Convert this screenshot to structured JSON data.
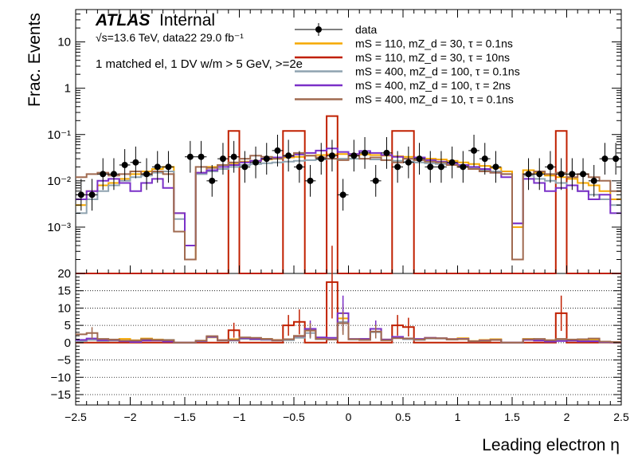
{
  "header": {
    "atlas": "ATLAS",
    "internal": "Internal",
    "energy_line": "√s=13.6 TeV, data22 29.0 fb⁻¹",
    "selection": "1 matched el, 1 DV w/m > 5 GeV, >=2e"
  },
  "axes": {
    "ylabel": "Frac. Events",
    "xlabel": "Leading electron η",
    "x_ticks": [
      "−2.5",
      "−2",
      "−1.5",
      "−1",
      "−0.5",
      "0",
      "0.5",
      "1",
      "1.5",
      "2",
      "2.5"
    ],
    "y_ticks_top": [
      "10",
      "1",
      "10⁻¹",
      "10⁻²",
      "10⁻³"
    ],
    "y_ticks_ratio": [
      "20",
      "15",
      "10",
      "5",
      "0",
      "−5",
      "−10",
      "−15"
    ]
  },
  "legend": [
    {
      "label": "data",
      "color": "#000000",
      "style": "marker"
    },
    {
      "label": "mS = 110, mZ_d = 30, τ = 0.1ns",
      "color": "#f5a800",
      "style": "line"
    },
    {
      "label": "mS = 110, mZ_d = 30, τ = 10ns",
      "color": "#c02000",
      "style": "line"
    },
    {
      "label": "mS = 400, mZ_d = 100, τ = 0.1ns",
      "color": "#8fa3b0",
      "style": "line"
    },
    {
      "label": "mS = 400, mZ_d = 100, τ = 2ns",
      "color": "#7a30c8",
      "style": "line"
    },
    {
      "label": "mS = 400, mZ_d = 10, τ = 0.1ns",
      "color": "#a06a50",
      "style": "line"
    }
  ],
  "chart_data": {
    "type": "line",
    "x": [
      -2.45,
      -2.35,
      -2.25,
      -2.15,
      -2.05,
      -1.95,
      -1.85,
      -1.75,
      -1.65,
      -1.55,
      -1.45,
      -1.35,
      -1.25,
      -1.15,
      -1.05,
      -0.95,
      -0.85,
      -0.75,
      -0.65,
      -0.55,
      -0.45,
      -0.35,
      -0.25,
      -0.15,
      -0.05,
      0.05,
      0.15,
      0.25,
      0.35,
      0.45,
      0.55,
      0.65,
      0.75,
      0.85,
      0.95,
      1.05,
      1.15,
      1.25,
      1.35,
      1.45,
      1.55,
      1.65,
      1.75,
      1.85,
      1.95,
      2.05,
      2.15,
      2.25,
      2.35,
      2.45
    ],
    "xlim": [
      -2.5,
      2.5
    ],
    "ylim_top": [
      0.0001,
      50
    ],
    "ylim_ratio": [
      -18,
      20
    ],
    "yscale_top": "log",
    "grid_ratio": true,
    "legend_position": "top-right",
    "series": [
      {
        "name": "data",
        "values": [
          0.005,
          0.005,
          0.014,
          0.014,
          0.022,
          0.025,
          0.014,
          0.02,
          0.02,
          0.0,
          0.033,
          0.033,
          0.01,
          0.03,
          0.033,
          0.02,
          0.025,
          0.03,
          0.045,
          0.035,
          0.02,
          0.01,
          0.03,
          0.035,
          0.005,
          0.035,
          0.04,
          0.01,
          0.04,
          0.02,
          0.025,
          0.03,
          0.02,
          0.02,
          0.025,
          0.02,
          0.045,
          0.03,
          0.02,
          0.0,
          0.0,
          0.014,
          0.014,
          0.02,
          0.014,
          0.014,
          0.014,
          0.01,
          0.03,
          0.03
        ]
      },
      {
        "name": "mS = 110, mZ_d = 30, τ = 0.1ns",
        "values": [
          0.003,
          0.006,
          0.008,
          0.009,
          0.011,
          0.014,
          0.016,
          0.018,
          0.02,
          0.002,
          0.0002,
          0.015,
          0.02,
          0.022,
          0.024,
          0.026,
          0.027,
          0.029,
          0.03,
          0.032,
          0.033,
          0.035,
          0.036,
          0.037,
          0.038,
          0.038,
          0.037,
          0.036,
          0.035,
          0.034,
          0.033,
          0.031,
          0.03,
          0.029,
          0.027,
          0.025,
          0.023,
          0.021,
          0.019,
          0.016,
          0.001,
          0.017,
          0.015,
          0.013,
          0.012,
          0.011,
          0.009,
          0.008,
          0.006,
          0.004
        ]
      },
      {
        "name": "mS = 110, mZ_d = 30, τ = 10ns",
        "values": [
          0.0001,
          0.0001,
          0.0001,
          0.0001,
          0.0001,
          0.0001,
          0.0001,
          0.0001,
          0.0001,
          0.0001,
          0.0001,
          0.0001,
          0.0001,
          0.0001,
          0.12,
          0.0001,
          0.0001,
          0.0001,
          0.0001,
          0.12,
          0.12,
          0.0001,
          0.0001,
          0.25,
          0.0001,
          0.0001,
          0.0001,
          0.0001,
          0.0001,
          0.12,
          0.12,
          0.0001,
          0.0001,
          0.0001,
          0.0001,
          0.0001,
          0.0001,
          0.0001,
          0.0001,
          0.0001,
          0.0001,
          0.0001,
          0.0001,
          0.0001,
          0.12,
          0.0001,
          0.0001,
          0.0001,
          0.0001,
          0.0001
        ]
      },
      {
        "name": "mS = 400, mZ_d = 100, τ = 0.1ns",
        "values": [
          0.002,
          0.004,
          0.006,
          0.008,
          0.01,
          0.012,
          0.013,
          0.015,
          0.016,
          0.0015,
          0.0004,
          0.014,
          0.016,
          0.018,
          0.02,
          0.022,
          0.023,
          0.024,
          0.025,
          0.026,
          0.027,
          0.028,
          0.029,
          0.03,
          0.03,
          0.03,
          0.03,
          0.029,
          0.028,
          0.027,
          0.026,
          0.025,
          0.024,
          0.023,
          0.022,
          0.021,
          0.019,
          0.017,
          0.016,
          0.014,
          0.0012,
          0.013,
          0.011,
          0.01,
          0.009,
          0.008,
          0.006,
          0.005,
          0.004,
          0.003
        ]
      },
      {
        "name": "mS = 400, mZ_d = 100, τ = 2ns",
        "values": [
          0.004,
          0.006,
          0.01,
          0.011,
          0.009,
          0.006,
          0.009,
          0.011,
          0.007,
          0.002,
          0.0004,
          0.015,
          0.017,
          0.02,
          0.022,
          0.025,
          0.027,
          0.03,
          0.032,
          0.034,
          0.037,
          0.04,
          0.045,
          0.05,
          0.042,
          0.038,
          0.044,
          0.04,
          0.036,
          0.033,
          0.03,
          0.032,
          0.028,
          0.026,
          0.024,
          0.022,
          0.02,
          0.018,
          0.015,
          0.012,
          0.0012,
          0.011,
          0.009,
          0.006,
          0.007,
          0.008,
          0.006,
          0.004,
          0.005,
          0.002
        ]
      },
      {
        "name": "mS = 400, mZ_d = 10, τ = 0.1ns",
        "values": [
          0.012,
          0.014,
          0.015,
          0.013,
          0.014,
          0.016,
          0.014,
          0.016,
          0.014,
          0.0008,
          0.0002,
          0.02,
          0.019,
          0.022,
          0.025,
          0.03,
          0.035,
          0.033,
          0.03,
          0.035,
          0.04,
          0.035,
          0.032,
          0.03,
          0.028,
          0.035,
          0.03,
          0.032,
          0.028,
          0.025,
          0.03,
          0.028,
          0.026,
          0.025,
          0.022,
          0.02,
          0.018,
          0.016,
          0.015,
          0.014,
          0.0002,
          0.014,
          0.016,
          0.014,
          0.015,
          0.012,
          0.014,
          0.012,
          0.01,
          0.006
        ]
      }
    ],
    "ratio_series": [
      {
        "name": "mS = 110, mZ_d = 30, τ = 0.1ns",
        "values": [
          0.5,
          1.0,
          0.6,
          0.8,
          1.1,
          0.7,
          1.2,
          0.9,
          0.8,
          0.0,
          0.0,
          0.2,
          1.5,
          0.7,
          1.0,
          1.2,
          0.9,
          1.1,
          0.8,
          1.0,
          1.5,
          3.5,
          1.0,
          0.9,
          7.0,
          1.0,
          1.1,
          4.0,
          0.9,
          1.5,
          1.2,
          1.0,
          1.4,
          1.2,
          1.1,
          1.3,
          0.5,
          0.8,
          1.0,
          0.0,
          0.0,
          1.1,
          1.0,
          0.7,
          0.9,
          0.8,
          0.7,
          0.8,
          0.2,
          0.1
        ]
      },
      {
        "name": "mS = 110, mZ_d = 30, τ = 10ns",
        "values": [
          0,
          0,
          0,
          0,
          0,
          0,
          0,
          0,
          0,
          0,
          0,
          0,
          0,
          0,
          3.6,
          0,
          0,
          0,
          0,
          5.0,
          6.0,
          0,
          0,
          17.5,
          0,
          0,
          0,
          0,
          0,
          5.0,
          4.5,
          0,
          0,
          0,
          0,
          0,
          0,
          0,
          0,
          0,
          0,
          0,
          0,
          0,
          8.5,
          0,
          0,
          0,
          0,
          0
        ]
      },
      {
        "name": "mS = 400, mZ_d = 100, τ = 0.1ns",
        "values": [
          0.4,
          0.8,
          0.5,
          0.6,
          0.5,
          0.5,
          0.9,
          0.8,
          0.8,
          0.0,
          0.0,
          0.4,
          1.6,
          0.6,
          0.6,
          1.1,
          0.9,
          0.8,
          0.6,
          0.7,
          1.4,
          2.8,
          1.0,
          0.9,
          6.0,
          0.9,
          0.8,
          3.0,
          0.7,
          1.4,
          1.0,
          0.8,
          1.2,
          1.2,
          0.9,
          1.1,
          0.4,
          0.6,
          0.8,
          0.0,
          0.0,
          0.9,
          0.8,
          0.5,
          0.6,
          0.6,
          0.4,
          0.5,
          0.1,
          0.1
        ]
      },
      {
        "name": "mS = 400, mZ_d = 100, τ = 2ns",
        "values": [
          0.8,
          1.2,
          0.7,
          0.8,
          0.4,
          0.2,
          0.6,
          0.6,
          0.3,
          0.0,
          0.0,
          0.5,
          1.7,
          0.7,
          0.7,
          1.3,
          1.1,
          1.0,
          0.7,
          1.0,
          1.9,
          4.0,
          1.5,
          1.4,
          8.5,
          1.1,
          1.1,
          4.0,
          0.9,
          1.7,
          1.2,
          1.1,
          1.4,
          1.3,
          1.0,
          1.1,
          0.4,
          0.6,
          0.8,
          0.0,
          0.0,
          0.8,
          0.6,
          0.3,
          0.5,
          0.6,
          0.4,
          0.4,
          0.2,
          0.1
        ]
      },
      {
        "name": "mS = 400, mZ_d = 10, τ = 0.1ns",
        "values": [
          2.4,
          2.8,
          1.1,
          0.9,
          0.6,
          0.6,
          1.0,
          0.8,
          0.7,
          0.0,
          0.0,
          0.6,
          1.9,
          0.7,
          0.8,
          1.5,
          1.4,
          1.1,
          0.7,
          1.0,
          2.0,
          3.5,
          1.1,
          0.9,
          5.6,
          1.0,
          0.8,
          3.2,
          0.7,
          1.3,
          1.2,
          0.9,
          1.3,
          1.3,
          0.9,
          1.0,
          0.4,
          0.5,
          0.8,
          0.0,
          0.0,
          1.0,
          1.1,
          0.7,
          1.1,
          0.9,
          1.0,
          1.2,
          0.3,
          0.2
        ]
      }
    ]
  }
}
